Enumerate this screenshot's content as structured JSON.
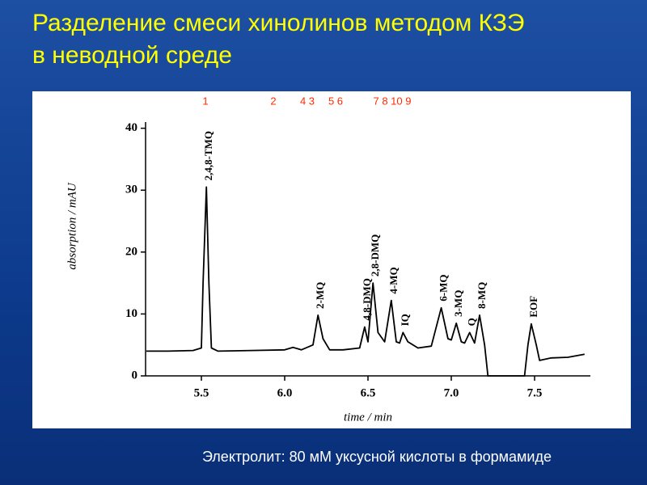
{
  "chart_data": {
    "type": "line",
    "title": [
      "Разделение смеси хинолинов методом КЗЭ",
      "в неводной среде"
    ],
    "peak_numbers": [
      "1",
      "2",
      "4 3",
      "5 6",
      "7 8 10 9"
    ],
    "x_label": "time / min",
    "y_label": "absorption / mAU",
    "footer": "Электролит:  80 мМ уксусной кислоты в формамиде",
    "color": "#000000",
    "x": [
      5.17,
      5.3,
      5.45,
      5.5,
      5.51,
      5.53,
      5.545,
      5.56,
      5.6,
      5.8,
      6.0,
      6.05,
      6.1,
      6.17,
      6.2,
      6.23,
      6.27,
      6.35,
      6.45,
      6.48,
      6.5,
      6.53,
      6.56,
      6.6,
      6.64,
      6.67,
      6.69,
      6.71,
      6.74,
      6.8,
      6.88,
      6.94,
      6.98,
      7.0,
      7.03,
      7.06,
      7.08,
      7.11,
      7.14,
      7.17,
      7.2,
      7.22,
      7.3,
      7.44,
      7.46,
      7.48,
      7.51,
      7.53,
      7.6,
      7.7,
      7.8
    ],
    "values": [
      4,
      4,
      4.1,
      4.5,
      15,
      30.5,
      15,
      4.5,
      4,
      4.1,
      4.2,
      4.6,
      4.2,
      5,
      9.8,
      6,
      4.2,
      4.2,
      4.5,
      7.9,
      5.5,
      15,
      7,
      5.5,
      12.2,
      5.5,
      5.3,
      7,
      5.5,
      4.5,
      4.8,
      11,
      6,
      5.8,
      8.5,
      5.5,
      5.3,
      7,
      5.3,
      9.8,
      5,
      0,
      0,
      0,
      5,
      8.4,
      5,
      2.5,
      2.9,
      3,
      3.5
    ],
    "annotations": [
      {
        "text": "2,4,8-TMQ",
        "x": 5.53
      },
      {
        "text": "2-MQ",
        "x": 6.2
      },
      {
        "text": "4,8-DMQ",
        "x": 6.48
      },
      {
        "text": "2,8-DMQ",
        "x": 6.53
      },
      {
        "text": "4-MQ",
        "x": 6.64
      },
      {
        "text": "IQ",
        "x": 6.71
      },
      {
        "text": "6-MQ",
        "x": 6.94
      },
      {
        "text": "3-MQ",
        "x": 7.03
      },
      {
        "text": "Q",
        "x": 7.11
      },
      {
        "text": "8-MQ",
        "x": 7.17
      },
      {
        "text": "EOF",
        "x": 7.48
      }
    ],
    "xlim": [
      5.165,
      7.835
    ],
    "ylim": [
      0,
      41
    ],
    "xticks": [
      5.5,
      {
        "value": 6,
        "label": "6.0"
      },
      6.5,
      {
        "value": 7,
        "label": "7.0"
      },
      7.5
    ],
    "yticks": [
      0,
      10,
      20,
      30,
      40
    ],
    "grid": false
  }
}
